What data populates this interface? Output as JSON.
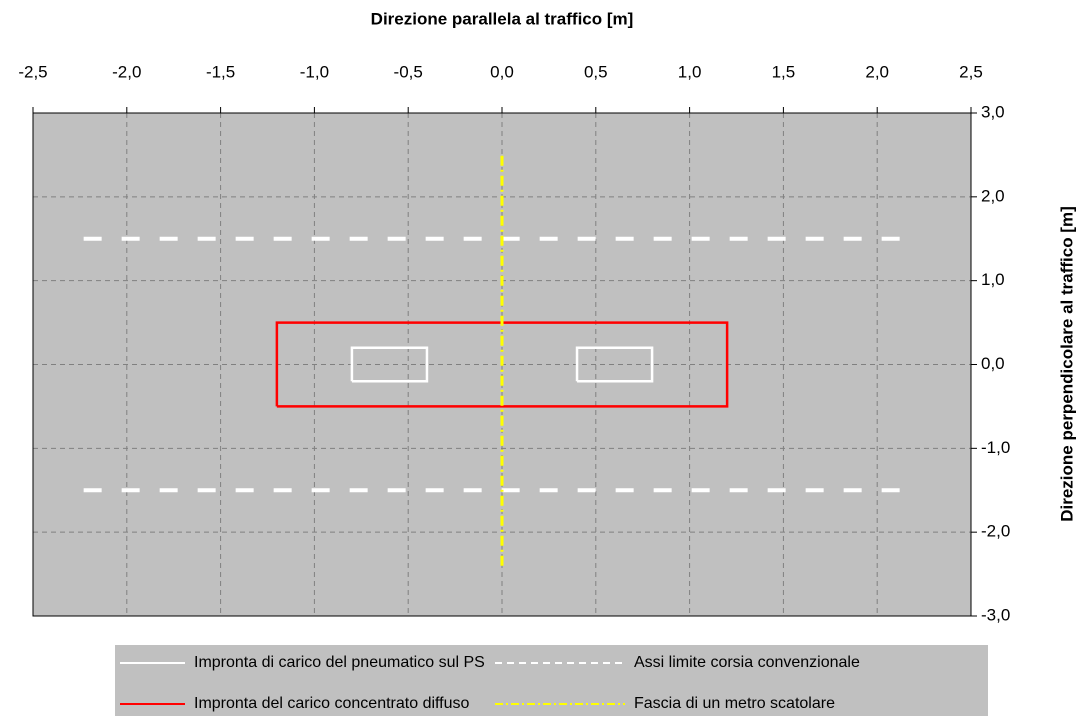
{
  "chart_data": {
    "type": "line",
    "xlabel": "Direzione parallela al traffico [m]",
    "ylabel": "Direzione perpendicolare al traffico [m]",
    "xlim": [
      -2.5,
      2.5
    ],
    "xticks": [
      {
        "value": -2.5,
        "label": "-2,5"
      },
      {
        "value": -2,
        "label": "-2,0"
      },
      {
        "value": -1.5,
        "label": "-1,5"
      },
      {
        "value": -1,
        "label": "-1,0"
      },
      {
        "value": -0.5,
        "label": "-0,5"
      },
      {
        "value": 0,
        "label": "0,0"
      },
      {
        "value": 0.5,
        "label": "0,5"
      },
      {
        "value": 1,
        "label": "1,0"
      },
      {
        "value": 1.5,
        "label": "1,5"
      },
      {
        "value": 2,
        "label": "2,0"
      },
      {
        "value": 2.5,
        "label": "2,5"
      }
    ],
    "ylim": [
      -3,
      3
    ],
    "yticks": [
      {
        "value": 3,
        "label": "3,0"
      },
      {
        "value": 2,
        "label": "2,0"
      },
      {
        "value": 1,
        "label": "1,0"
      },
      {
        "value": 0,
        "label": "0,0"
      },
      {
        "value": -1,
        "label": "-1,0"
      },
      {
        "value": -2,
        "label": "-2,0"
      },
      {
        "value": -3,
        "label": "-3,0"
      }
    ],
    "grid": true,
    "x_axis_position": "top",
    "y_axis_position": "right",
    "legend": "bottom",
    "series": [
      {
        "name": "Impronta di carico del pneumatico sul PS",
        "color": "#ffffff",
        "line_style": "solid",
        "x": [
          -0.8,
          -0.4,
          -0.4,
          -0.8,
          -0.8,
          null,
          0.4,
          0.8,
          0.8,
          0.4,
          0.4
        ],
        "values": [
          -0.2,
          -0.2,
          0.2,
          0.2,
          -0.2,
          null,
          -0.2,
          -0.2,
          0.2,
          0.2,
          -0.2
        ]
      },
      {
        "name": "Assi limite corsia convenzionale",
        "color": "#ffffff",
        "line_style": "dashed",
        "x": [
          -2.23,
          2.13,
          null,
          -2.23,
          2.13
        ],
        "values": [
          1.5,
          1.5,
          null,
          -1.5,
          -1.5
        ]
      },
      {
        "name": "Impronta del carico concentrato diffuso",
        "color": "#ff0000",
        "line_style": "solid",
        "x": [
          -1.2,
          1.2,
          1.2,
          -1.2,
          -1.2
        ],
        "values": [
          -0.5,
          -0.5,
          0.5,
          0.5,
          -0.5
        ]
      },
      {
        "name": "Fascia di un metro scatolare",
        "color": "#ffff00",
        "line_style": "dashdot",
        "x": [
          0,
          0
        ],
        "values": [
          -2.4,
          2.5
        ]
      }
    ]
  }
}
